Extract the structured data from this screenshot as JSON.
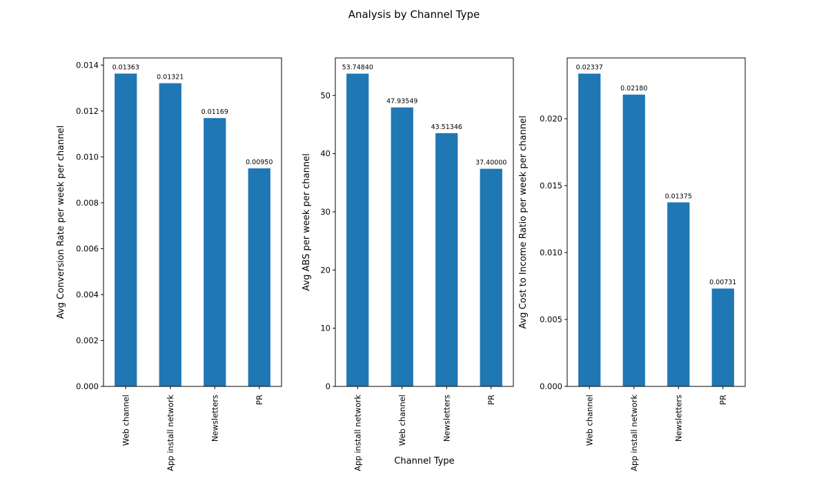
{
  "figure": {
    "title": "Analysis by Channel Type",
    "xlabel": "Channel Type"
  },
  "colors": {
    "bar": "#1f77b4",
    "axes": "#000000",
    "background": "#ffffff"
  },
  "chart_data": [
    {
      "type": "bar",
      "categories": [
        "Web channel",
        "App install network",
        "Newsletters",
        "PR"
      ],
      "values": [
        0.01363,
        0.01321,
        0.01169,
        0.0095
      ],
      "value_labels": [
        "0.01363",
        "0.01321",
        "0.01169",
        "0.00950"
      ],
      "ylabel": "Avg Conversion Rate per week per channel",
      "xlabel": "",
      "ylim": [
        0,
        0.01431
      ],
      "yticks": [
        0,
        0.002,
        0.004,
        0.006,
        0.008,
        0.01,
        0.012,
        0.014
      ],
      "ytick_labels": [
        "0.000",
        "0.002",
        "0.004",
        "0.006",
        "0.008",
        "0.010",
        "0.012",
        "0.014"
      ],
      "grid": false
    },
    {
      "type": "bar",
      "categories": [
        "App install network",
        "Web channel",
        "Newsletters",
        "PR"
      ],
      "values": [
        53.7484,
        47.93549,
        43.51346,
        37.4
      ],
      "value_labels": [
        "53.74840",
        "47.93549",
        "43.51346",
        "37.40000"
      ],
      "ylabel": "Avg ABS per week per channel",
      "xlabel": "Channel Type",
      "ylim": [
        0,
        56.44
      ],
      "yticks": [
        0,
        10,
        20,
        30,
        40,
        50
      ],
      "ytick_labels": [
        "0",
        "10",
        "20",
        "30",
        "40",
        "50"
      ],
      "grid": false
    },
    {
      "type": "bar",
      "categories": [
        "Web channel",
        "App install network",
        "Newsletters",
        "PR"
      ],
      "values": [
        0.02337,
        0.0218,
        0.01375,
        0.00731
      ],
      "value_labels": [
        "0.02337",
        "0.02180",
        "0.01375",
        "0.00731"
      ],
      "ylabel": "Avg Cost to Income Ratio per week per channel",
      "xlabel": "",
      "ylim": [
        0,
        0.02454
      ],
      "yticks": [
        0,
        0.005,
        0.01,
        0.015,
        0.02
      ],
      "ytick_labels": [
        "0.000",
        "0.005",
        "0.010",
        "0.015",
        "0.020"
      ],
      "grid": false
    }
  ]
}
